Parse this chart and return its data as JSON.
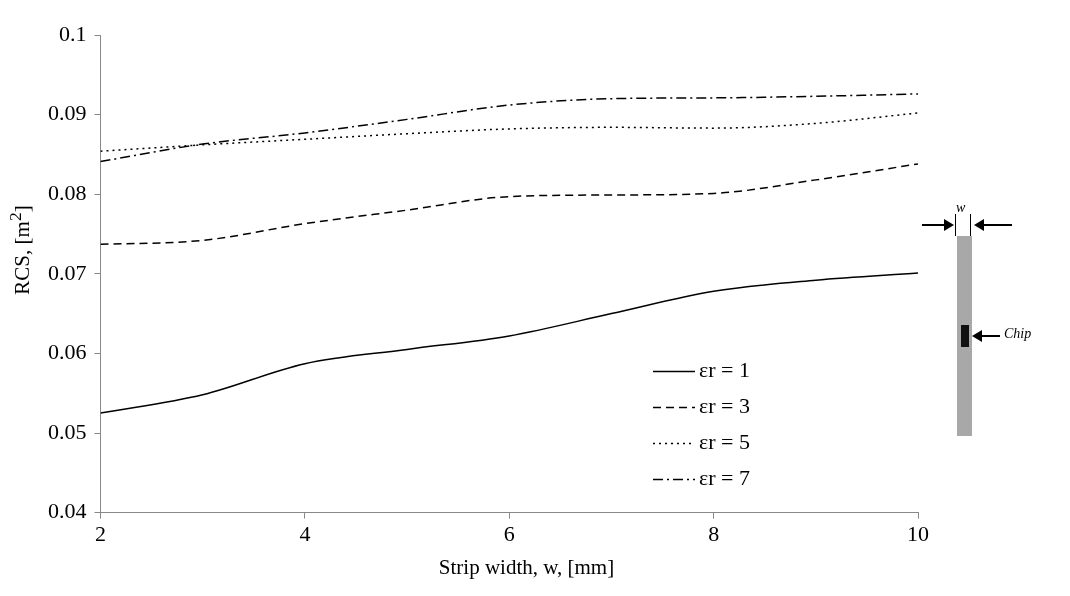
{
  "chart_data": {
    "type": "line",
    "xlabel": "Strip width, w, [mm]",
    "ylabel": "RCS, [m$^{2}$]",
    "x": [
      2,
      3,
      4,
      5,
      6,
      7,
      8,
      9,
      10
    ],
    "series": [
      {
        "name": "εr = 1",
        "color": "#000000",
        "line_style": "solid",
        "values": [
          0.0525,
          0.0548,
          0.0587,
          0.0605,
          0.0622,
          0.065,
          0.0678,
          0.0692,
          0.0701
        ]
      },
      {
        "name": "εr = 3",
        "color": "#000000",
        "line_style": "dashed",
        "values": [
          0.0737,
          0.0742,
          0.0763,
          0.078,
          0.0797,
          0.0799,
          0.0801,
          0.0818,
          0.0838
        ]
      },
      {
        "name": "εr = 5",
        "color": "#000000",
        "line_style": "dotted",
        "values": [
          0.0854,
          0.0862,
          0.0869,
          0.0876,
          0.0882,
          0.0884,
          0.0883,
          0.0889,
          0.0902
        ]
      },
      {
        "name": "εr = 7",
        "color": "#000000",
        "line_style": "dashdot",
        "values": [
          0.0841,
          0.0863,
          0.0877,
          0.0894,
          0.0912,
          0.092,
          0.0921,
          0.0923,
          0.0926
        ]
      }
    ],
    "xlim": [
      2,
      10
    ],
    "xticks": [
      2,
      4,
      6,
      8,
      10
    ],
    "ylim": [
      0.04,
      0.1
    ],
    "yticks": [
      0.04,
      0.05,
      0.06,
      0.07,
      0.08,
      0.09,
      0.1
    ],
    "grid": false,
    "legend": "bottom right",
    "marker": "none",
    "annotations": [
      "w",
      "Chip"
    ]
  }
}
